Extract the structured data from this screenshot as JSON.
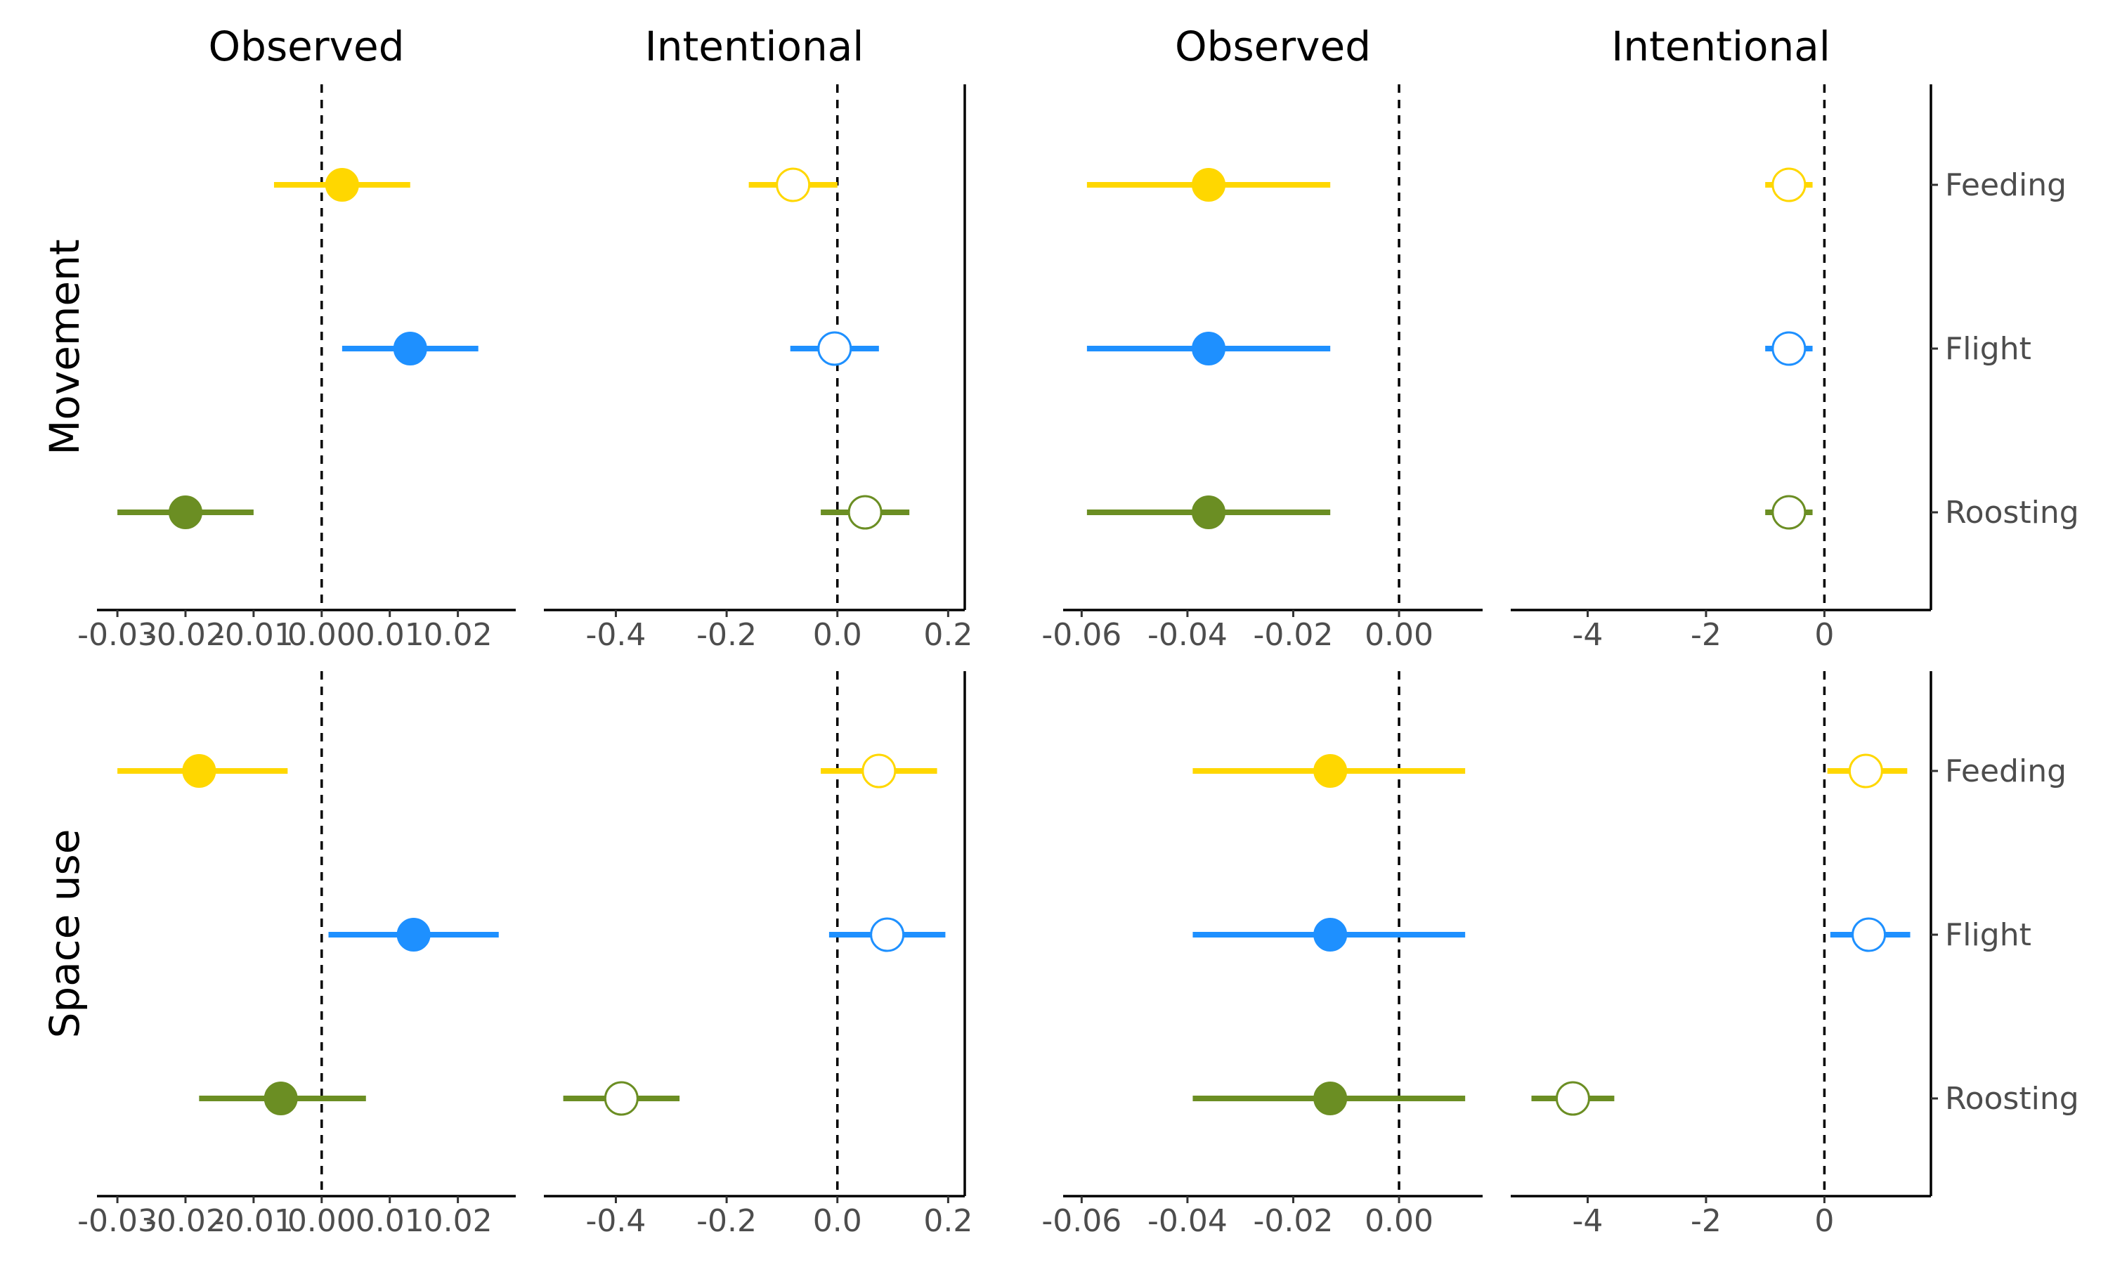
{
  "chart_data": {
    "type": "forest",
    "column_titles": [
      "Observed",
      "Intentional",
      "Observed",
      "Intentional"
    ],
    "row_titles": [
      "Movement",
      "Space use"
    ],
    "categories": [
      "Feeding",
      "Flight",
      "Roosting"
    ],
    "colors": {
      "Feeding": "#FFD700",
      "Flight": "#1E90FF",
      "Roosting": "#6B8E23"
    },
    "x_axes": [
      {
        "xlim": [
          -0.033,
          0.0285
        ],
        "ticks": [
          -0.03,
          -0.02,
          -0.01,
          0.0,
          0.01,
          0.02
        ],
        "tick_labels": [
          "-0.03",
          "-0.02",
          "-0.01",
          "0.00",
          "0.01",
          "0.02"
        ]
      },
      {
        "xlim": [
          -0.53,
          0.23
        ],
        "ticks": [
          -0.4,
          -0.2,
          0.0,
          0.2
        ],
        "tick_labels": [
          "-0.4",
          "-0.2",
          "0.0",
          "0.2"
        ]
      },
      {
        "xlim": [
          -0.0635,
          0.0158
        ],
        "ticks": [
          -0.06,
          -0.04,
          -0.02,
          0.0
        ],
        "tick_labels": [
          "-0.06",
          "-0.04",
          "-0.02",
          "0.00"
        ]
      },
      {
        "xlim": [
          -5.3,
          1.8
        ],
        "ticks": [
          -4,
          -2,
          0
        ],
        "tick_labels": [
          "-4",
          "-2",
          "0"
        ]
      }
    ],
    "panels": [
      {
        "row": "Movement",
        "col": 0,
        "filled": true,
        "points": [
          {
            "category": "Feeding",
            "estimate": 0.003,
            "lower": -0.007,
            "upper": 0.013
          },
          {
            "category": "Flight",
            "estimate": 0.013,
            "lower": 0.003,
            "upper": 0.023
          },
          {
            "category": "Roosting",
            "estimate": -0.02,
            "lower": -0.03,
            "upper": -0.01
          }
        ]
      },
      {
        "row": "Movement",
        "col": 1,
        "filled": false,
        "points": [
          {
            "category": "Feeding",
            "estimate": -0.08,
            "lower": -0.16,
            "upper": 0.0
          },
          {
            "category": "Flight",
            "estimate": -0.005,
            "lower": -0.085,
            "upper": 0.075
          },
          {
            "category": "Roosting",
            "estimate": 0.05,
            "lower": -0.03,
            "upper": 0.13
          }
        ]
      },
      {
        "row": "Movement",
        "col": 2,
        "filled": true,
        "points": [
          {
            "category": "Feeding",
            "estimate": -0.036,
            "lower": -0.059,
            "upper": -0.013
          },
          {
            "category": "Flight",
            "estimate": -0.036,
            "lower": -0.059,
            "upper": -0.013
          },
          {
            "category": "Roosting",
            "estimate": -0.036,
            "lower": -0.059,
            "upper": -0.013
          }
        ]
      },
      {
        "row": "Movement",
        "col": 3,
        "filled": false,
        "points": [
          {
            "category": "Feeding",
            "estimate": -0.6,
            "lower": -1.0,
            "upper": -0.2
          },
          {
            "category": "Flight",
            "estimate": -0.6,
            "lower": -1.0,
            "upper": -0.2
          },
          {
            "category": "Roosting",
            "estimate": -0.6,
            "lower": -1.0,
            "upper": -0.2
          }
        ]
      },
      {
        "row": "Space use",
        "col": 0,
        "filled": true,
        "points": [
          {
            "category": "Feeding",
            "estimate": -0.018,
            "lower": -0.03,
            "upper": -0.005
          },
          {
            "category": "Flight",
            "estimate": 0.0135,
            "lower": 0.001,
            "upper": 0.026
          },
          {
            "category": "Roosting",
            "estimate": -0.006,
            "lower": -0.018,
            "upper": 0.0065
          }
        ]
      },
      {
        "row": "Space use",
        "col": 1,
        "filled": false,
        "points": [
          {
            "category": "Feeding",
            "estimate": 0.075,
            "lower": -0.03,
            "upper": 0.18
          },
          {
            "category": "Flight",
            "estimate": 0.09,
            "lower": -0.015,
            "upper": 0.195
          },
          {
            "category": "Roosting",
            "estimate": -0.39,
            "lower": -0.495,
            "upper": -0.285
          }
        ]
      },
      {
        "row": "Space use",
        "col": 2,
        "filled": true,
        "points": [
          {
            "category": "Feeding",
            "estimate": -0.013,
            "lower": -0.039,
            "upper": 0.0125
          },
          {
            "category": "Flight",
            "estimate": -0.013,
            "lower": -0.039,
            "upper": 0.0125
          },
          {
            "category": "Roosting",
            "estimate": -0.013,
            "lower": -0.039,
            "upper": 0.0125
          }
        ]
      },
      {
        "row": "Space use",
        "col": 3,
        "filled": false,
        "points": [
          {
            "category": "Feeding",
            "estimate": 0.7,
            "lower": 0.05,
            "upper": 1.4
          },
          {
            "category": "Flight",
            "estimate": 0.75,
            "lower": 0.1,
            "upper": 1.45
          },
          {
            "category": "Roosting",
            "estimate": -4.25,
            "lower": -4.95,
            "upper": -3.55
          }
        ]
      }
    ],
    "zero_reference_line": true,
    "grid": false,
    "legend": "none"
  }
}
